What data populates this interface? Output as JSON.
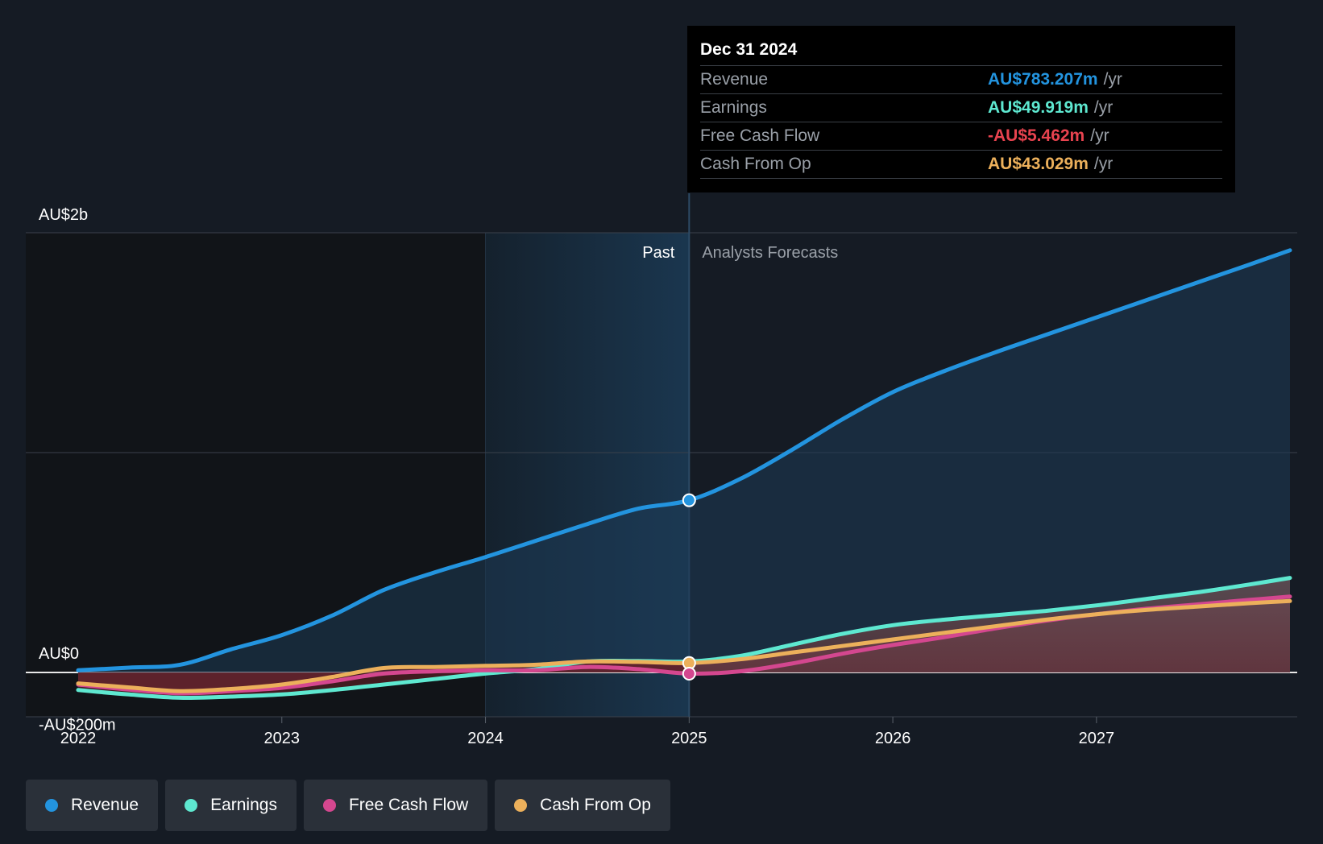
{
  "chart_data": {
    "type": "line",
    "title": "",
    "xlabel": "",
    "ylabel": "",
    "xlim": [
      2021.75,
      2027.95
    ],
    "ylim": [
      -200,
      2000
    ],
    "x_ticks": [
      2022,
      2023,
      2024,
      2025,
      2026,
      2027
    ],
    "x_tick_labels": [
      "2022",
      "2023",
      "2024",
      "2025",
      "2026",
      "2027"
    ],
    "y_axis_labels": [
      {
        "value": 2000,
        "label": "AU$2b"
      },
      {
        "value": 0,
        "label": "AU$0"
      },
      {
        "value": -200,
        "label": "-AU$200m"
      }
    ],
    "gridlines": [
      2000,
      1000,
      0
    ],
    "past_label": "Past",
    "forecast_label": "Analysts Forecasts",
    "divider_x": 2025.0,
    "highlight_start_x": 2024.0,
    "series": [
      {
        "name": "Revenue",
        "color": "#2394df",
        "x": [
          2022.0,
          2022.25,
          2022.5,
          2022.75,
          2023.0,
          2023.25,
          2023.5,
          2023.75,
          2024.0,
          2024.25,
          2024.5,
          2024.75,
          2025.0,
          2025.25,
          2025.5,
          2025.75,
          2026.0,
          2026.25,
          2026.5,
          2026.75,
          2027.0,
          2027.25,
          2027.5,
          2027.75,
          2027.95
        ],
        "values": [
          10,
          22,
          35,
          105,
          170,
          260,
          375,
          455,
          525,
          600,
          675,
          745,
          783,
          880,
          1010,
          1150,
          1275,
          1370,
          1455,
          1535,
          1615,
          1695,
          1775,
          1855,
          1920
        ]
      },
      {
        "name": "Earnings",
        "color": "#5ee8d0",
        "x": [
          2022.0,
          2022.25,
          2022.5,
          2022.75,
          2023.0,
          2023.25,
          2023.5,
          2023.75,
          2024.0,
          2024.25,
          2024.5,
          2024.75,
          2025.0,
          2025.25,
          2025.5,
          2025.75,
          2026.0,
          2026.25,
          2026.5,
          2026.75,
          2027.0,
          2027.25,
          2027.5,
          2027.75,
          2027.95
        ],
        "values": [
          -80,
          -100,
          -115,
          -110,
          -100,
          -80,
          -55,
          -30,
          -5,
          15,
          50,
          52,
          50,
          75,
          125,
          175,
          215,
          240,
          260,
          280,
          305,
          335,
          365,
          400,
          430
        ]
      },
      {
        "name": "Free Cash Flow",
        "color": "#d4478f",
        "x": [
          2022.0,
          2022.25,
          2022.5,
          2022.75,
          2023.0,
          2023.25,
          2023.5,
          2023.75,
          2024.0,
          2024.25,
          2024.5,
          2024.75,
          2025.0,
          2025.25,
          2025.5,
          2025.75,
          2026.0,
          2026.25,
          2026.5,
          2026.75,
          2027.0,
          2027.25,
          2027.5,
          2027.75,
          2027.95
        ],
        "values": [
          -55,
          -78,
          -95,
          -85,
          -70,
          -40,
          -5,
          5,
          10,
          10,
          25,
          15,
          -5,
          5,
          40,
          85,
          125,
          160,
          200,
          235,
          265,
          290,
          310,
          330,
          345
        ]
      },
      {
        "name": "Cash From Op",
        "color": "#ecb05b",
        "x": [
          2022.0,
          2022.25,
          2022.5,
          2022.75,
          2023.0,
          2023.25,
          2023.5,
          2023.75,
          2024.0,
          2024.25,
          2024.5,
          2024.75,
          2025.0,
          2025.25,
          2025.5,
          2025.75,
          2026.0,
          2026.25,
          2026.5,
          2026.75,
          2027.0,
          2027.25,
          2027.5,
          2027.75,
          2027.95
        ],
        "values": [
          -50,
          -68,
          -85,
          -75,
          -55,
          -20,
          20,
          25,
          30,
          35,
          50,
          48,
          43,
          60,
          90,
          120,
          150,
          180,
          210,
          240,
          265,
          285,
          300,
          315,
          325
        ]
      }
    ],
    "highlight_points": [
      {
        "series": "Revenue",
        "x": 2025.0,
        "value": 783.207
      },
      {
        "series": "Cash From Op",
        "x": 2025.0,
        "value": 43.029
      },
      {
        "series": "Free Cash Flow",
        "x": 2025.0,
        "value": -5.462
      }
    ]
  },
  "tooltip": {
    "date": "Dec 31 2024",
    "rows": [
      {
        "name": "Revenue",
        "value": "AU$783.207m",
        "unit": "/yr",
        "color": "#2394df"
      },
      {
        "name": "Earnings",
        "value": "AU$49.919m",
        "unit": "/yr",
        "color": "#5ee8d0"
      },
      {
        "name": "Free Cash Flow",
        "value": "-AU$5.462m",
        "unit": "/yr",
        "color": "#e8434f"
      },
      {
        "name": "Cash From Op",
        "value": "AU$43.029m",
        "unit": "/yr",
        "color": "#ecb05b"
      }
    ]
  },
  "legend": [
    {
      "label": "Revenue",
      "color": "#2394df"
    },
    {
      "label": "Earnings",
      "color": "#5ee8d0"
    },
    {
      "label": "Free Cash Flow",
      "color": "#d4478f"
    },
    {
      "label": "Cash From Op",
      "color": "#ecb05b"
    }
  ]
}
